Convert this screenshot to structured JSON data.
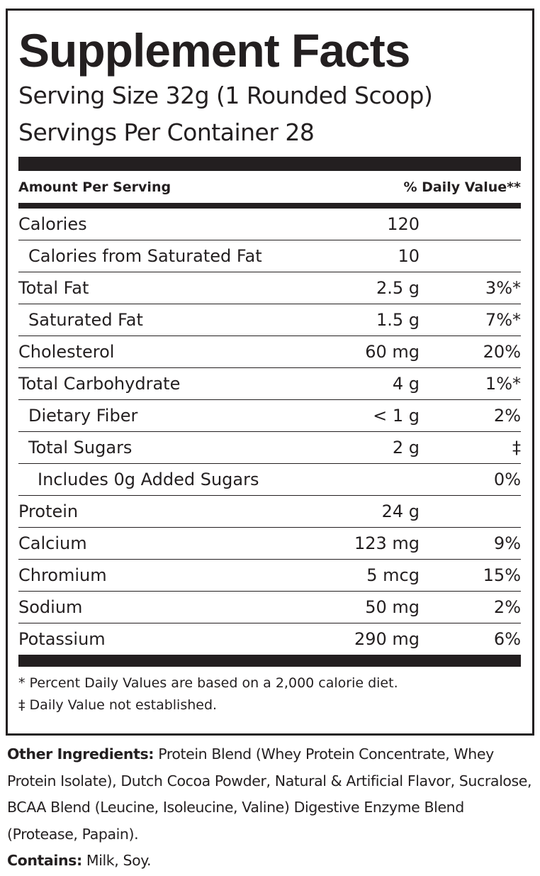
{
  "panel": {
    "title": "Supplement Facts",
    "serving_size": "Serving Size 32g (1 Rounded Scoop)",
    "servings_per_container": "Servings Per Container  28",
    "header": {
      "amount": "Amount Per Serving",
      "daily_value": "% Daily Value**"
    },
    "rows": [
      {
        "label": "Calories",
        "amount": "120"
      },
      {
        "label": "Calories from Saturated Fat",
        "amount": "10"
      },
      {
        "label": "Total Fat",
        "amount": "2.5 g",
        "daily_value": "3%*"
      },
      {
        "label": "Saturated Fat",
        "amount": "1.5 g",
        "daily_value": "7%*"
      },
      {
        "label": "Cholesterol",
        "amount": "60 mg",
        "daily_value": "20%"
      },
      {
        "label": "Total Carbohydrate",
        "amount": "4 g",
        "daily_value": "1%*"
      },
      {
        "label": "Dietary Fiber",
        "amount": "< 1 g",
        "daily_value": "2%"
      },
      {
        "label": "Total Sugars",
        "amount": "2 g",
        "daily_value": "‡"
      },
      {
        "label": "Includes 0g Added Sugars",
        "daily_value": "0%"
      },
      {
        "label": "Protein",
        "amount": "24 g"
      },
      {
        "label": "Calcium",
        "amount": "123 mg",
        "daily_value": "9%"
      },
      {
        "label": "Chromium",
        "amount": "5 mcg",
        "daily_value": "15%"
      },
      {
        "label": "Sodium",
        "amount": "50 mg",
        "daily_value": "2%"
      },
      {
        "label": "Potassium",
        "amount": "290 mg",
        "daily_value": "6%"
      }
    ],
    "footnotes": [
      "* Percent Daily Values are based on a 2,000 calorie diet.",
      "‡ Daily Value not established."
    ]
  },
  "other_ingredients": {
    "label": "Other Ingredients:",
    "text": "Protein Blend (Whey Protein Concentrate, Whey Protein Isolate), Dutch Cocoa Powder, Natural & Artificial Flavor, Sucralose, BCAA Blend (Leucine, Isoleucine, Valine) Digestive Enzyme Blend (Protease, Papain)."
  },
  "contains": {
    "label": "Contains:",
    "text": "Milk, Soy."
  }
}
